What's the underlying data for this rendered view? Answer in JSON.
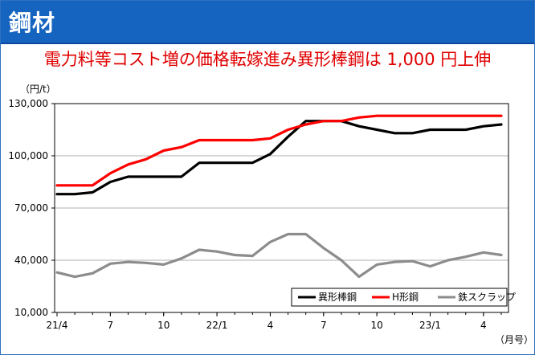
{
  "header": {
    "title": "鋼材"
  },
  "chart_data": {
    "type": "line",
    "title": "電力料等コスト増の価格転嫁進み異形棒鋼は 1,000 円上伸",
    "ylabel": "（円/t）",
    "xlabel": "（月号）",
    "ylim": [
      10000,
      130000
    ],
    "yticks": [
      10000,
      40000,
      70000,
      100000,
      130000
    ],
    "ytick_labels": [
      "10,000",
      "40,000",
      "70,000",
      "100,000",
      "130,000"
    ],
    "x_tick_labels": [
      {
        "index": 0,
        "label": "21/4"
      },
      {
        "index": 3,
        "label": "7"
      },
      {
        "index": 6,
        "label": "10"
      },
      {
        "index": 9,
        "label": "22/1"
      },
      {
        "index": 12,
        "label": "4"
      },
      {
        "index": 15,
        "label": "7"
      },
      {
        "index": 18,
        "label": "10"
      },
      {
        "index": 21,
        "label": "23/1"
      },
      {
        "index": 24,
        "label": "4"
      }
    ],
    "grid": "horizontal",
    "legend_position": "bottom-right",
    "series": [
      {
        "name": "異形棒鋼",
        "color": "#000000",
        "values": [
          78000,
          78000,
          79000,
          85000,
          88000,
          88000,
          88000,
          88000,
          96000,
          96000,
          96000,
          96000,
          101000,
          111000,
          120000,
          120000,
          120000,
          117000,
          115000,
          113000,
          113000,
          115000,
          115000,
          115000,
          117000,
          118000
        ]
      },
      {
        "name": "H形鋼",
        "color": "#ff0000",
        "values": [
          83000,
          83000,
          83000,
          90000,
          95000,
          98000,
          103000,
          105000,
          109000,
          109000,
          109000,
          109000,
          110000,
          115000,
          118000,
          120000,
          120000,
          122000,
          123000,
          123000,
          123000,
          123000,
          123000,
          123000,
          123000,
          123000
        ]
      },
      {
        "name": "鉄スクラップ",
        "color": "#8c8c8c",
        "values": [
          33000,
          30500,
          32500,
          38000,
          39000,
          38500,
          37500,
          41000,
          46000,
          45000,
          43000,
          42500,
          50500,
          55000,
          55000,
          47000,
          40000,
          30500,
          37500,
          39000,
          39500,
          36500,
          40000,
          42000,
          44500,
          43000
        ]
      }
    ]
  }
}
